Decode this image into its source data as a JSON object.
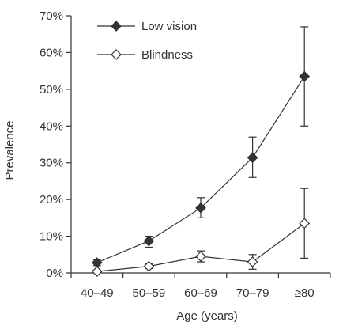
{
  "chart_data": {
    "type": "line",
    "title": "",
    "xlabel": "Age (years)",
    "ylabel": "Prevalence",
    "categories": [
      "40–49",
      "50–59",
      "60–69",
      "70–79",
      "≥80"
    ],
    "y_ticks": [
      "0%",
      "10%",
      "20%",
      "30%",
      "40%",
      "50%",
      "60%",
      "70%"
    ],
    "ylim": [
      0,
      70
    ],
    "grid": false,
    "legend_position": "top-left",
    "series": [
      {
        "name": "Low vision",
        "marker": "filled-diamond",
        "values": [
          2.8,
          8.7,
          17.7,
          31.4,
          53.5
        ],
        "error_low": [
          2.0,
          7.0,
          15.0,
          26.0,
          40.0
        ],
        "error_high": [
          3.6,
          10.0,
          20.5,
          37.0,
          67.0
        ]
      },
      {
        "name": "Blindness",
        "marker": "open-diamond",
        "values": [
          0.4,
          1.8,
          4.5,
          3.0,
          13.5
        ],
        "error_low": [
          0.1,
          1.2,
          3.0,
          1.0,
          4.0
        ],
        "error_high": [
          0.8,
          2.5,
          6.0,
          5.0,
          23.0
        ]
      }
    ],
    "colors": {
      "line": "#333333",
      "marker_fill": "#333333",
      "open_fill": "#ffffff"
    }
  }
}
